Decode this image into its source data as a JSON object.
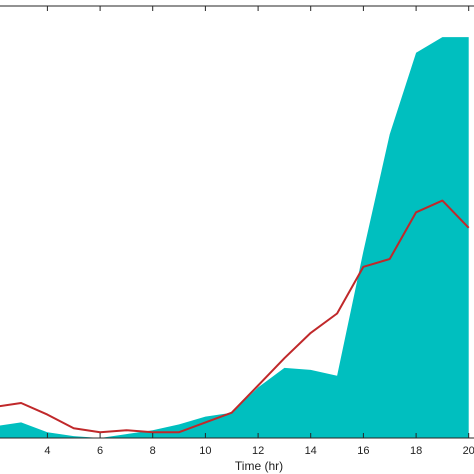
{
  "chart_data": {
    "type": "area",
    "xlabel": "Time (hr)",
    "xlim": [
      2.2,
      20.2
    ],
    "ylim": [
      0,
      1.11
    ],
    "xticks": [
      "4",
      "6",
      "8",
      "10",
      "12",
      "14",
      "16",
      "18",
      "20"
    ],
    "xtick_values": [
      4,
      6,
      8,
      10,
      12,
      14,
      16,
      18,
      20
    ],
    "grid": false,
    "series": [
      {
        "kind": "area",
        "color": "#00BFBF",
        "x": [
          2,
          3,
          4,
          5,
          6,
          7,
          8,
          9,
          10,
          11,
          12,
          13,
          14,
          15,
          16,
          17,
          18,
          19,
          20
        ],
        "y": [
          0.03,
          0.04,
          0.015,
          0.005,
          0.0,
          0.01,
          0.02,
          0.035,
          0.055,
          0.065,
          0.13,
          0.18,
          0.175,
          0.16,
          0.48,
          0.78,
          0.99,
          1.03,
          1.03
        ]
      },
      {
        "kind": "line",
        "color": "#C0282A",
        "x": [
          2,
          3,
          4,
          5,
          6,
          7,
          8,
          9,
          10,
          11,
          12,
          13,
          14,
          15,
          16,
          17,
          18,
          19,
          20
        ],
        "y": [
          0.08,
          0.09,
          0.06,
          0.025,
          0.015,
          0.02,
          0.015,
          0.015,
          0.04,
          0.065,
          0.135,
          0.205,
          0.27,
          0.32,
          0.44,
          0.46,
          0.58,
          0.61,
          0.54
        ]
      }
    ]
  }
}
